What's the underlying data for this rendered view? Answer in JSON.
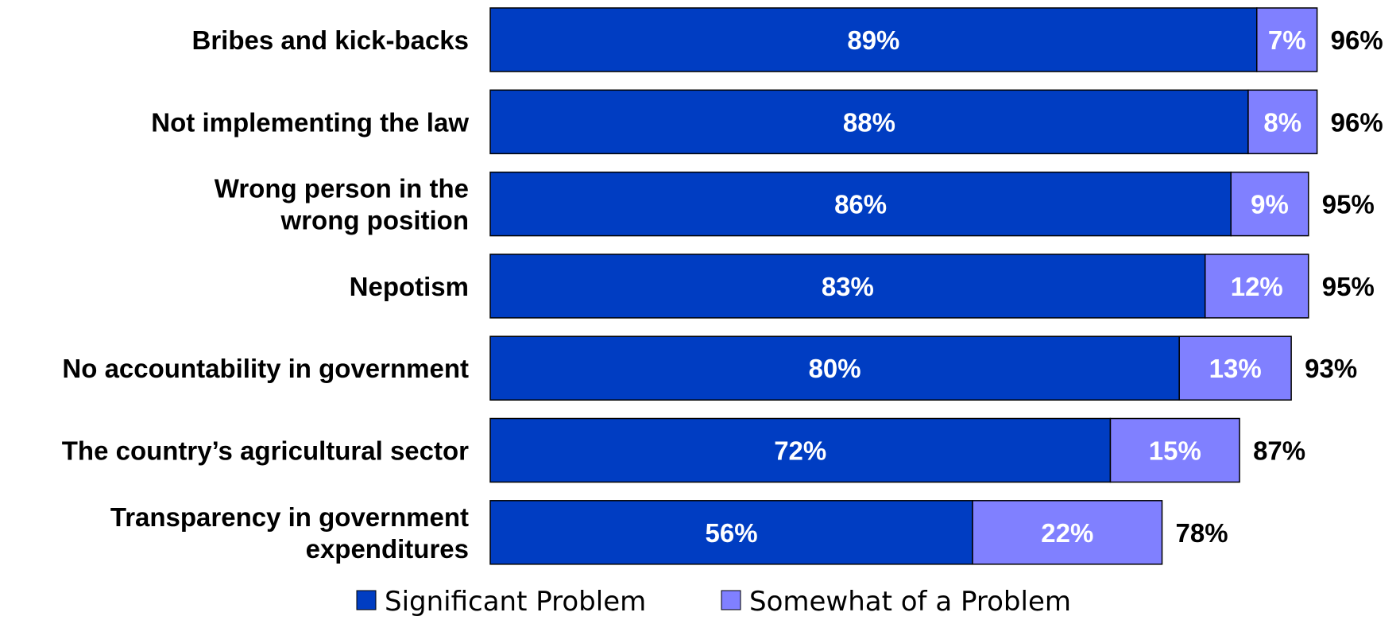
{
  "chart_data": {
    "type": "bar",
    "orientation": "horizontal",
    "stacked": true,
    "categories": [
      "Bribes and kick-backs",
      "Not implementing the law",
      "Wrong person in the wrong position",
      "Nepotism",
      "No accountability in government",
      "The country’s agricultural sector",
      "Transparency in government expenditures"
    ],
    "series": [
      {
        "name": "Significant Problem",
        "values": [
          89,
          88,
          86,
          83,
          80,
          72,
          56
        ],
        "color": "#003DC2"
      },
      {
        "name": "Somewhat of a Problem",
        "values": [
          7,
          8,
          9,
          12,
          13,
          15,
          22
        ],
        "color": "#8080FF"
      }
    ],
    "value_labels": [
      [
        "89%",
        "88%",
        "86%",
        "83%",
        "80%",
        "72%",
        "56%"
      ],
      [
        "7%",
        "8%",
        "9%",
        "12%",
        "13%",
        "15%",
        "22%"
      ]
    ],
    "totals": [
      96,
      96,
      95,
      95,
      93,
      87,
      78
    ],
    "total_labels": [
      "96%",
      "96%",
      "95%",
      "95%",
      "93%",
      "87%",
      "78%"
    ],
    "title": "",
    "xlabel": "",
    "ylabel": "",
    "xlim": [
      0,
      100
    ],
    "grid": false,
    "legend_position": "bottom"
  },
  "legend": {
    "items": [
      {
        "label": "Significant Problem",
        "color": "#003DC2"
      },
      {
        "label": "Somewhat of a Problem",
        "color": "#8080FF"
      }
    ]
  }
}
